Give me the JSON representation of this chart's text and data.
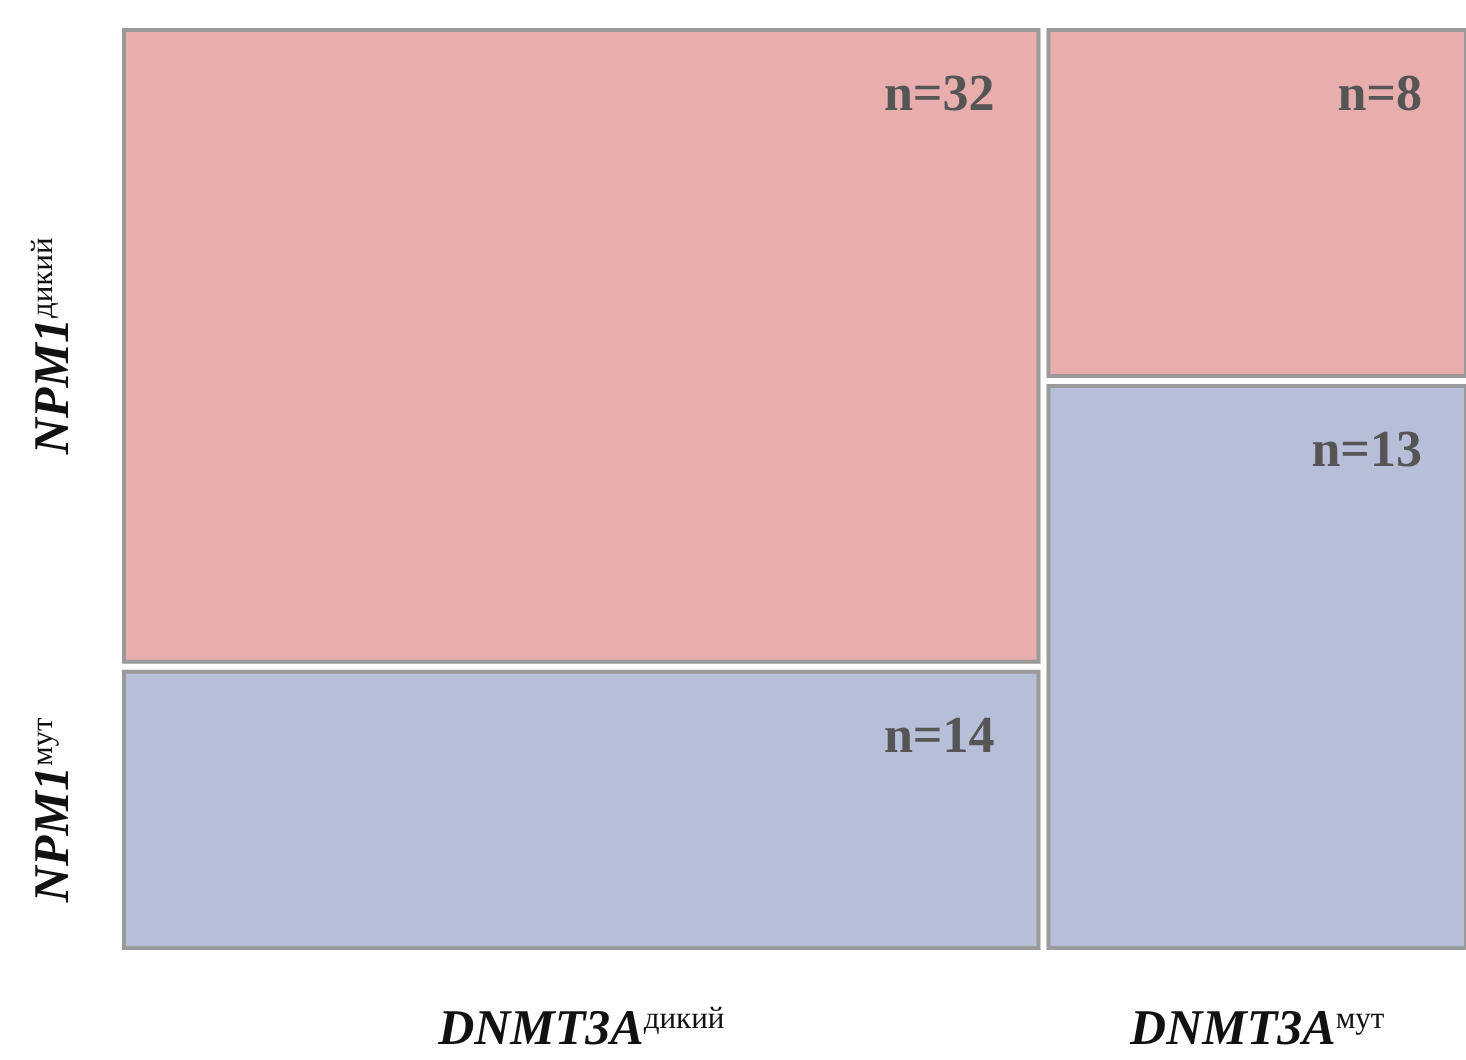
{
  "chart_data": {
    "type": "other",
    "categories": [
      "DNMT3A$^{дикий}$",
      "DNMT3A$^{мут}$"
    ],
    "series": [
      {
        "name": "NPM1$^{дикий}$",
        "color": "#e8adad",
        "values": [
          32,
          8
        ],
        "value_labels": [
          "n=32",
          "n=8"
        ]
      },
      {
        "name": "NPM1$^{мут}$",
        "color": "#b7bed8",
        "values": [
          14,
          13
        ],
        "value_labels": [
          "n=14",
          "n=13"
        ]
      }
    ]
  }
}
